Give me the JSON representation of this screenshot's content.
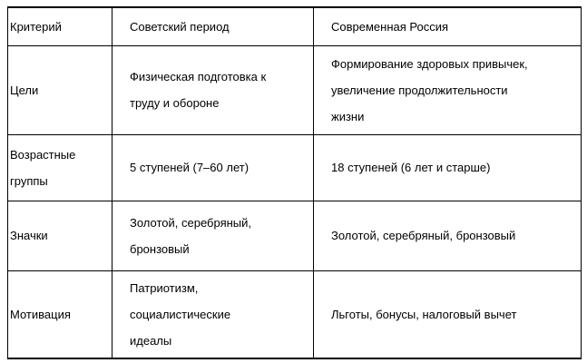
{
  "table": {
    "headers": [
      "Критерий",
      "Советский период",
      "Современная Россия"
    ],
    "rows": [
      {
        "criterion": "Цели",
        "soviet": "Физическая подготовка к\nтруду и обороне",
        "modern": "Формирование здоровых привычек,\nувеличение продолжительности\nжизни"
      },
      {
        "criterion": "Возрастные\nгруппы",
        "soviet": "5 ступеней (7–60 лет)",
        "modern": "18 ступеней (6 лет и старше)"
      },
      {
        "criterion": "Значки",
        "soviet": "Золотой, серебряный,\nбронзовый",
        "modern": "Золотой, серебряный, бронзовый"
      },
      {
        "criterion": "Мотивация",
        "soviet": "Патриотизм,\nсоциалистические\nидеалы",
        "modern": "Льготы, бонусы, налоговый вычет"
      }
    ],
    "colors": {
      "border": "#000000",
      "text": "#000000",
      "background": "#ffffff"
    }
  }
}
